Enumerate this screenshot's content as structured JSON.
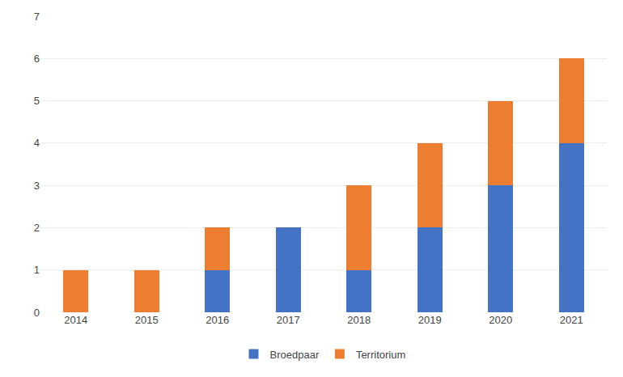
{
  "chart_data": {
    "type": "bar",
    "stacked": true,
    "categories": [
      "2014",
      "2015",
      "2016",
      "2017",
      "2018",
      "2019",
      "2020",
      "2021"
    ],
    "series": [
      {
        "name": "Broedpaar",
        "color": "#4472C4",
        "values": [
          0,
          0,
          1,
          2,
          1,
          2,
          3,
          4
        ]
      },
      {
        "name": "Territorium",
        "color": "#ED7D31",
        "values": [
          1,
          1,
          1,
          0,
          2,
          2,
          2,
          2
        ]
      }
    ],
    "ylim": [
      0,
      7
    ],
    "yticks": [
      0,
      1,
      2,
      3,
      4,
      5,
      6,
      7
    ],
    "grid": true,
    "legend": "bottom"
  }
}
